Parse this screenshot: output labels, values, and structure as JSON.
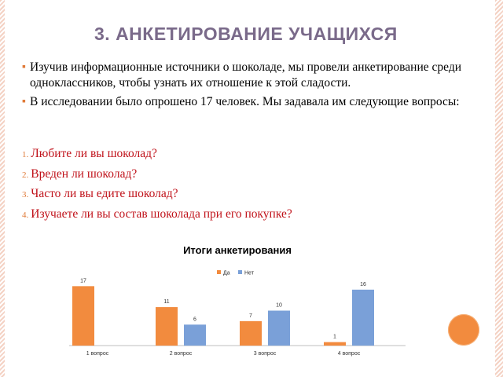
{
  "slide": {
    "title": "3. АНКЕТИРОВАНИЕ УЧАЩИХСЯ",
    "bullets": [
      "Изучив информационные источники о шоколаде, мы провели анкетирование среди  одноклассников, чтобы узнать их отношение к этой сладости.",
      "В исследовании было опрошено 17 человек. Мы задавала им следующие вопросы:"
    ],
    "questions": [
      {
        "num": "1.",
        "text": "Любите ли вы шоколад?"
      },
      {
        "num": "2.",
        "text": "Вреден ли  шоколад?"
      },
      {
        "num": "3.",
        "text": "Часто ли вы едите шоколад?"
      },
      {
        "num": "4.",
        "text": "Изучаете ли вы состав шоколада при его покупке?"
      }
    ]
  },
  "colors": {
    "title": "#7a6a8a",
    "question_text": "#c0121a",
    "accent": "#e07b39",
    "series_da": "#f28b3e",
    "series_net": "#7aa0d8"
  },
  "chart_data": {
    "type": "bar",
    "title": "Итоги анкетирования",
    "categories": [
      "1 вопрос",
      "2 вопрос",
      "3 вопрос",
      "4 вопрос"
    ],
    "series": [
      {
        "name": "Да",
        "values": [
          17,
          11,
          7,
          1
        ],
        "labels": [
          "17",
          "11",
          "7",
          "1"
        ],
        "color": "#f28b3e"
      },
      {
        "name": "Нет",
        "values": [
          null,
          6,
          10,
          16
        ],
        "labels": [
          "",
          "6",
          "10",
          "16"
        ],
        "color": "#7aa0d8"
      }
    ],
    "ylim": [
      0,
      18
    ],
    "legend": "top",
    "grid": false
  }
}
